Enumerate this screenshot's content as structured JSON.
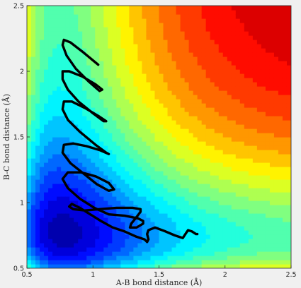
{
  "chart_data": {
    "type": "contour",
    "title": "",
    "xlabel": "A-B bond distance (Å)",
    "ylabel": "B-C bond distance (Å)",
    "xlim": [
      0.5,
      2.5
    ],
    "ylim": [
      0.5,
      2.5
    ],
    "xticks": [
      "0.5",
      "1",
      "1.5",
      "2",
      "2.5"
    ],
    "yticks": [
      "0.5",
      "1",
      "1.5",
      "2",
      "2.5"
    ],
    "grid": false,
    "colormap": "jet",
    "plateau_color": "#a64545",
    "trajectory_color": "#000000",
    "trajectory": [
      [
        1.04,
        2.05
      ],
      [
        0.92,
        2.15
      ],
      [
        0.83,
        2.22
      ],
      [
        0.78,
        2.24
      ],
      [
        0.77,
        2.2
      ],
      [
        0.8,
        2.12
      ],
      [
        0.87,
        2.02
      ],
      [
        0.97,
        1.92
      ],
      [
        1.05,
        1.85
      ],
      [
        1.07,
        1.86
      ],
      [
        1.02,
        1.9
      ],
      [
        0.92,
        1.96
      ],
      [
        0.82,
        2.0
      ],
      [
        0.77,
        2.0
      ],
      [
        0.77,
        1.94
      ],
      [
        0.81,
        1.86
      ],
      [
        0.89,
        1.77
      ],
      [
        1.0,
        1.68
      ],
      [
        1.08,
        1.62
      ],
      [
        1.1,
        1.62
      ],
      [
        1.04,
        1.66
      ],
      [
        0.94,
        1.72
      ],
      [
        0.84,
        1.77
      ],
      [
        0.78,
        1.77
      ],
      [
        0.77,
        1.71
      ],
      [
        0.81,
        1.63
      ],
      [
        0.9,
        1.54
      ],
      [
        1.02,
        1.44
      ],
      [
        1.1,
        1.38
      ],
      [
        1.12,
        1.37
      ],
      [
        1.05,
        1.4
      ],
      [
        0.95,
        1.43
      ],
      [
        0.85,
        1.45
      ],
      [
        0.78,
        1.44
      ],
      [
        0.77,
        1.38
      ],
      [
        0.83,
        1.3
      ],
      [
        0.93,
        1.22
      ],
      [
        1.03,
        1.14
      ],
      [
        1.12,
        1.09
      ],
      [
        1.16,
        1.1
      ],
      [
        1.12,
        1.15
      ],
      [
        1.02,
        1.2
      ],
      [
        0.91,
        1.23
      ],
      [
        0.81,
        1.23
      ],
      [
        0.77,
        1.18
      ],
      [
        0.81,
        1.11
      ],
      [
        0.9,
        1.03
      ],
      [
        1.01,
        0.96
      ],
      [
        1.12,
        0.91
      ],
      [
        1.24,
        0.9
      ],
      [
        1.34,
        0.88
      ],
      [
        1.38,
        0.86
      ],
      [
        1.38,
        0.84
      ],
      [
        1.33,
        0.81
      ],
      [
        1.28,
        0.81
      ],
      [
        1.29,
        0.84
      ],
      [
        1.33,
        0.89
      ],
      [
        1.36,
        0.93
      ],
      [
        1.36,
        0.95
      ],
      [
        1.3,
        0.96
      ],
      [
        1.18,
        0.96
      ],
      [
        1.05,
        0.95
      ],
      [
        0.94,
        0.94
      ],
      [
        0.85,
        0.95
      ],
      [
        0.82,
        0.97
      ],
      [
        0.84,
        0.99
      ],
      [
        0.9,
        0.96
      ],
      [
        0.98,
        0.91
      ],
      [
        1.06,
        0.86
      ],
      [
        1.15,
        0.81
      ],
      [
        1.24,
        0.78
      ],
      [
        1.33,
        0.74
      ],
      [
        1.39,
        0.72
      ],
      [
        1.41,
        0.7
      ],
      [
        1.42,
        0.72
      ],
      [
        1.41,
        0.76
      ],
      [
        1.42,
        0.79
      ],
      [
        1.47,
        0.81
      ],
      [
        1.55,
        0.78
      ],
      [
        1.62,
        0.75
      ],
      [
        1.68,
        0.73
      ],
      [
        1.7,
        0.76
      ],
      [
        1.72,
        0.79
      ],
      [
        1.75,
        0.78
      ],
      [
        1.78,
        0.76
      ],
      [
        1.79,
        0.76
      ]
    ]
  }
}
